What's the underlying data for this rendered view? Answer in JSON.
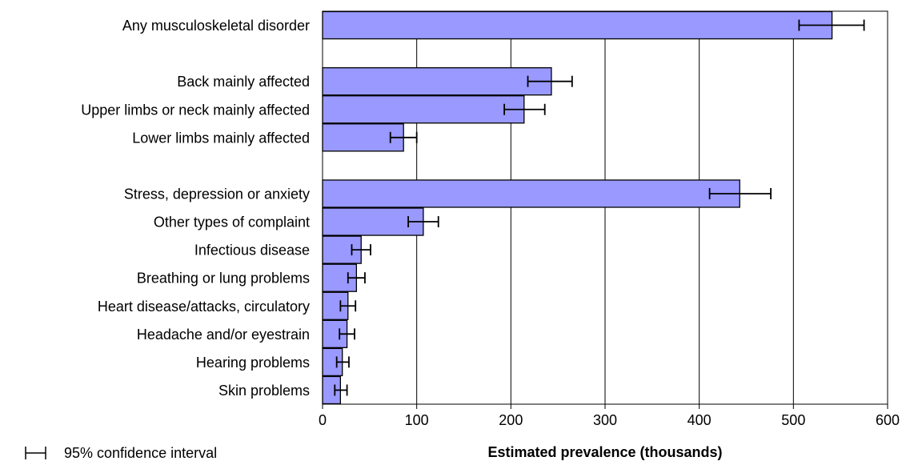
{
  "chart_data": {
    "type": "bar",
    "orientation": "horizontal",
    "xlabel": "Estimated prevalence (thousands)",
    "xlim": [
      0,
      600
    ],
    "xticks": [
      0,
      100,
      200,
      300,
      400,
      500,
      600
    ],
    "grid": true,
    "bar_color": "#9999ff",
    "legend": {
      "label": "95% confidence interval",
      "placement": "bottom-left"
    },
    "groups": [
      {
        "items": [
          {
            "category": "Any musculoskeletal disorder",
            "value": 541,
            "ci_low": 506,
            "ci_high": 575
          }
        ]
      },
      {
        "items": [
          {
            "category": "Back mainly affected",
            "value": 243,
            "ci_low": 218,
            "ci_high": 265
          },
          {
            "category": "Upper limbs or neck mainly affected",
            "value": 214,
            "ci_low": 193,
            "ci_high": 236
          },
          {
            "category": "Lower limbs mainly affected",
            "value": 86,
            "ci_low": 72,
            "ci_high": 100
          }
        ]
      },
      {
        "items": [
          {
            "category": "Stress, depression or anxiety",
            "value": 443,
            "ci_low": 411,
            "ci_high": 476
          },
          {
            "category": "Other types of complaint",
            "value": 107,
            "ci_low": 91,
            "ci_high": 123
          },
          {
            "category": "Infectious disease",
            "value": 41,
            "ci_low": 31,
            "ci_high": 51
          },
          {
            "category": "Breathing or lung problems",
            "value": 36,
            "ci_low": 27,
            "ci_high": 45
          },
          {
            "category": "Heart disease/attacks, circulatory",
            "value": 27,
            "ci_low": 19,
            "ci_high": 35
          },
          {
            "category": "Headache and/or eyestrain",
            "value": 26,
            "ci_low": 18,
            "ci_high": 34
          },
          {
            "category": "Hearing problems",
            "value": 21,
            "ci_low": 15,
            "ci_high": 28
          },
          {
            "category": "Skin problems",
            "value": 19,
            "ci_low": 13,
            "ci_high": 26
          }
        ]
      }
    ]
  }
}
